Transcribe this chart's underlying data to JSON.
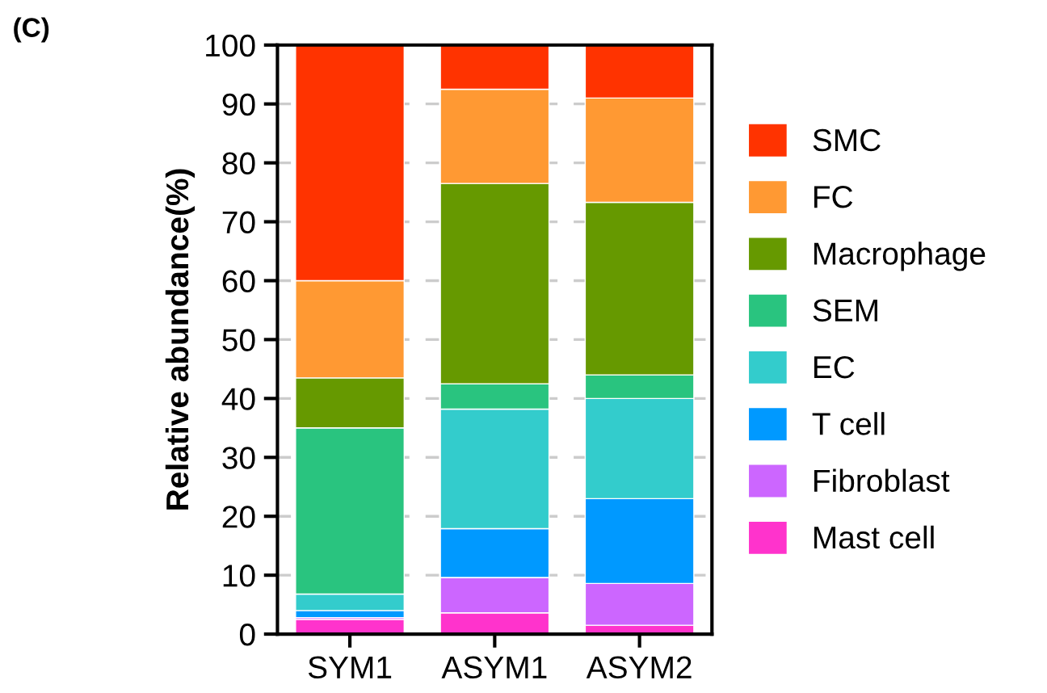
{
  "chart_data": {
    "type": "bar",
    "stacked": true,
    "title": "(C)",
    "ylabel": "Relative abundance(%)",
    "categories": [
      "SYM1",
      "ASYM1",
      "ASYM2"
    ],
    "series": [
      {
        "name": "Mast cell",
        "color": "#ff33cc",
        "values": [
          2.5,
          3.6,
          1.5
        ]
      },
      {
        "name": "Fibroblast",
        "color": "#cc66ff",
        "values": [
          0.3,
          6.0,
          7.1
        ]
      },
      {
        "name": "T cell",
        "color": "#0099ff",
        "values": [
          1.2,
          8.3,
          14.4
        ]
      },
      {
        "name": "EC",
        "color": "#33cccc",
        "values": [
          2.8,
          20.3,
          17.0
        ]
      },
      {
        "name": "SEM",
        "color": "#29c47f",
        "values": [
          28.2,
          4.3,
          4.0
        ]
      },
      {
        "name": "Macrophage",
        "color": "#669900",
        "values": [
          8.5,
          34.0,
          29.3
        ]
      },
      {
        "name": "FC",
        "color": "#ff9933",
        "values": [
          16.5,
          16.0,
          17.7
        ]
      },
      {
        "name": "SMC",
        "color": "#ff3300",
        "values": [
          40.0,
          7.5,
          9.0
        ]
      }
    ],
    "ylim": [
      0,
      100
    ],
    "yticks": [
      0,
      10,
      20,
      30,
      40,
      50,
      60,
      70,
      80,
      90,
      100
    ],
    "grid": "y",
    "legend": "right"
  }
}
